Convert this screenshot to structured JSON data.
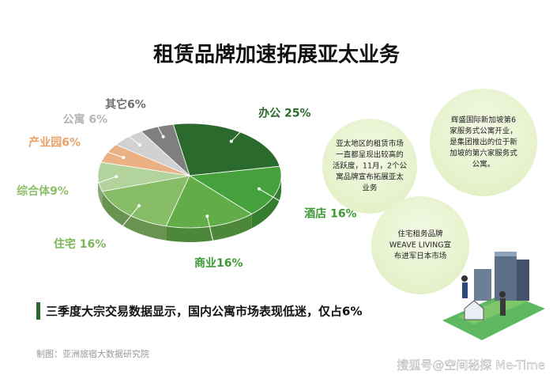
{
  "chart_data": {
    "type": "pie",
    "title": "租赁品牌加速拓展亚太业务",
    "values": [
      25,
      16,
      16,
      16,
      9,
      6,
      6,
      6
    ],
    "value_labels": [
      "办公 25%",
      "酒店 16%",
      "商业16%",
      "住宅 16%",
      "综合体9%",
      "产业园6%",
      "公寓 6%",
      "其它6%"
    ],
    "colors": [
      "#2a6a2c",
      "#45a13c",
      "#63ad49",
      "#86bd66",
      "#b3d39c",
      "#eab185",
      "#d1d1d1",
      "#7f7f7f"
    ],
    "label_colors": [
      "#2a6a2c",
      "#3c9a34",
      "#3c9a34",
      "#7ab55a",
      "#8cc06a",
      "#e8a066",
      "#b5b5b5",
      "#6e6e6e"
    ]
  },
  "callouts": [
    {
      "lines": [
        "亚太地区的租赁市场",
        "一直都呈现出较高的",
        "活跃度，11月，2个公",
        "寓品牌宣布拓展亚太",
        "业务"
      ]
    },
    {
      "lines": [
        "辉盛国际新加坡第6",
        "家服务式公寓开业，",
        "是集团推出的位于新",
        "加坡的第六家服务式",
        "公寓。"
      ]
    },
    {
      "lines": [
        "住宅租务品牌",
        "WEAVE LIVING宣",
        "布进军日本市场"
      ]
    }
  ],
  "caption": "三季度大宗交易数据显示，国内公寓市场表现低迷，仅占6%",
  "source": "制图：亚洲旅宿大数据研究院",
  "watermark": "搜狐号@空间秘探 Me-Time"
}
